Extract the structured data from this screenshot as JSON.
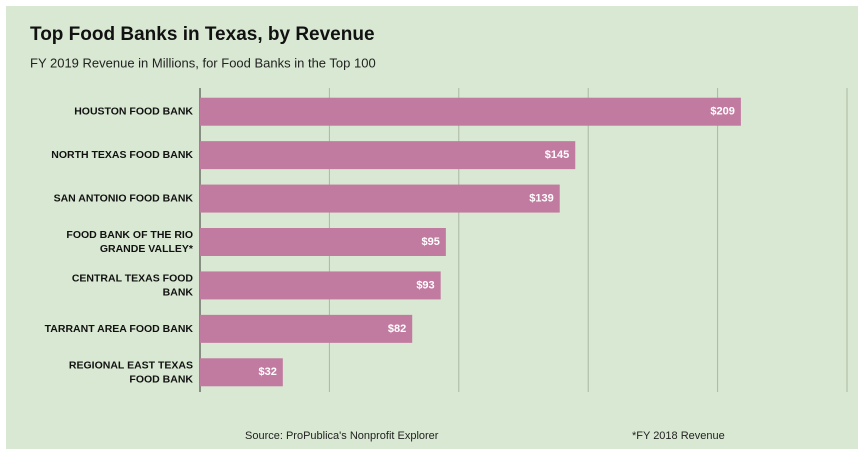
{
  "chart_data": {
    "type": "bar",
    "orientation": "horizontal",
    "title": "Top Food Banks in Texas, by Revenue",
    "subtitle": "FY 2019 Revenue in Millions, for Food Banks in the Top 100",
    "categories": [
      "HOUSTON FOOD BANK",
      "NORTH TEXAS FOOD BANK",
      "SAN ANTONIO FOOD BANK",
      "FOOD BANK OF THE RIO GRANDE VALLEY*",
      "CENTRAL TEXAS FOOD BANK",
      "TARRANT AREA FOOD BANK",
      "REGIONAL EAST TEXAS FOOD BANK"
    ],
    "values": [
      209,
      145,
      139,
      95,
      93,
      82,
      32
    ],
    "value_labels": [
      "$209",
      "$145",
      "$139",
      "$95",
      "$93",
      "$82",
      "$32"
    ],
    "color": "#c27ba0",
    "xlim": [
      0,
      250
    ],
    "xticks": [
      0,
      50,
      100,
      150,
      200,
      250
    ],
    "grid": true,
    "source": "Source: ProPublica's Nonprofit Explorer",
    "note": "*FY 2018 Revenue"
  }
}
